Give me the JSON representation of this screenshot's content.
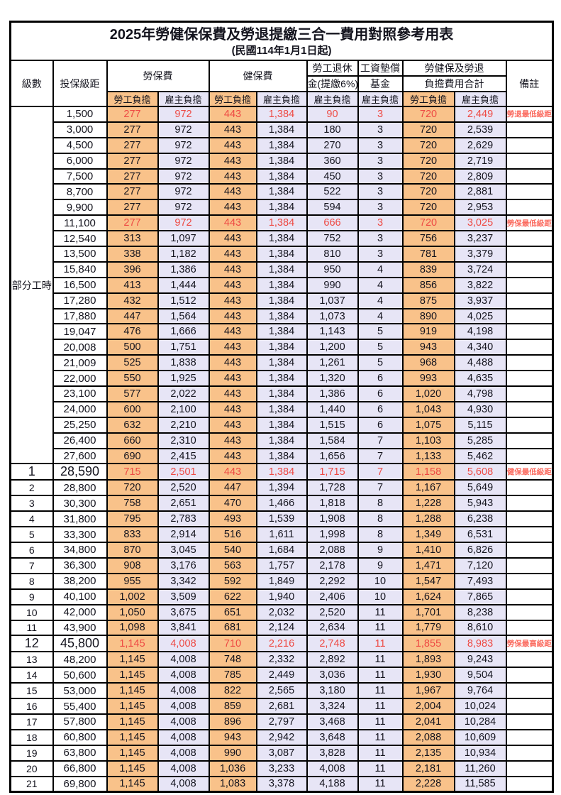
{
  "header": {
    "title": "2025年勞健保保費及勞退提繳三合一費用對照參考用表",
    "subtitle": "(民國114年1月1日起)"
  },
  "columns": {
    "level": "級數",
    "bracket": "投保級距",
    "labor_ins": "勞保費",
    "health_ins": "健保費",
    "pension_line1": "勞工退休",
    "pension_line2": "金(提繳6%)",
    "wage_fund_line1": "工資墊償",
    "wage_fund_line2": "基金",
    "total_line1": "勞健保及勞退",
    "total_line2": "負擔費用合計",
    "note": "備註",
    "employee": "勞工負擔",
    "employer": "雇主負擔"
  },
  "colors": {
    "employee_bg": "#f9c28a",
    "employer_bg": "#e7e5f6",
    "highlight_red": "#ee4a44",
    "note_red": "#fb6a5e"
  },
  "table": {
    "part_time_label": "部分工時",
    "part_time_rowspan": 23,
    "rows": [
      {
        "level": "",
        "bracket": "1,500",
        "li_emp": "277",
        "li_er": "972",
        "hi_emp": "443",
        "hi_er": "1,384",
        "pension": "90",
        "fund": "3",
        "tot_emp": "720",
        "tot_er": "2,449",
        "note": "勞退最低級距",
        "red": true
      },
      {
        "level": "",
        "bracket": "3,000",
        "li_emp": "277",
        "li_er": "972",
        "hi_emp": "443",
        "hi_er": "1,384",
        "pension": "180",
        "fund": "3",
        "tot_emp": "720",
        "tot_er": "2,539",
        "note": ""
      },
      {
        "level": "",
        "bracket": "4,500",
        "li_emp": "277",
        "li_er": "972",
        "hi_emp": "443",
        "hi_er": "1,384",
        "pension": "270",
        "fund": "3",
        "tot_emp": "720",
        "tot_er": "2,629",
        "note": ""
      },
      {
        "level": "",
        "bracket": "6,000",
        "li_emp": "277",
        "li_er": "972",
        "hi_emp": "443",
        "hi_er": "1,384",
        "pension": "360",
        "fund": "3",
        "tot_emp": "720",
        "tot_er": "2,719",
        "note": ""
      },
      {
        "level": "",
        "bracket": "7,500",
        "li_emp": "277",
        "li_er": "972",
        "hi_emp": "443",
        "hi_er": "1,384",
        "pension": "450",
        "fund": "3",
        "tot_emp": "720",
        "tot_er": "2,809",
        "note": ""
      },
      {
        "level": "",
        "bracket": "8,700",
        "li_emp": "277",
        "li_er": "972",
        "hi_emp": "443",
        "hi_er": "1,384",
        "pension": "522",
        "fund": "3",
        "tot_emp": "720",
        "tot_er": "2,881",
        "note": ""
      },
      {
        "level": "",
        "bracket": "9,900",
        "li_emp": "277",
        "li_er": "972",
        "hi_emp": "443",
        "hi_er": "1,384",
        "pension": "594",
        "fund": "3",
        "tot_emp": "720",
        "tot_er": "2,953",
        "note": ""
      },
      {
        "level": "",
        "bracket": "11,100",
        "li_emp": "277",
        "li_er": "972",
        "hi_emp": "443",
        "hi_er": "1,384",
        "pension": "666",
        "fund": "3",
        "tot_emp": "720",
        "tot_er": "3,025",
        "note": "勞保最低級距",
        "red": true
      },
      {
        "level": "",
        "bracket": "12,540",
        "li_emp": "313",
        "li_er": "1,097",
        "hi_emp": "443",
        "hi_er": "1,384",
        "pension": "752",
        "fund": "3",
        "tot_emp": "756",
        "tot_er": "3,237",
        "note": ""
      },
      {
        "level": "",
        "bracket": "13,500",
        "li_emp": "338",
        "li_er": "1,182",
        "hi_emp": "443",
        "hi_er": "1,384",
        "pension": "810",
        "fund": "3",
        "tot_emp": "781",
        "tot_er": "3,379",
        "note": ""
      },
      {
        "level": "",
        "bracket": "15,840",
        "li_emp": "396",
        "li_er": "1,386",
        "hi_emp": "443",
        "hi_er": "1,384",
        "pension": "950",
        "fund": "4",
        "tot_emp": "839",
        "tot_er": "3,724",
        "note": ""
      },
      {
        "level": "",
        "bracket": "16,500",
        "li_emp": "413",
        "li_er": "1,444",
        "hi_emp": "443",
        "hi_er": "1,384",
        "pension": "990",
        "fund": "4",
        "tot_emp": "856",
        "tot_er": "3,822",
        "note": ""
      },
      {
        "level": "",
        "bracket": "17,280",
        "li_emp": "432",
        "li_er": "1,512",
        "hi_emp": "443",
        "hi_er": "1,384",
        "pension": "1,037",
        "fund": "4",
        "tot_emp": "875",
        "tot_er": "3,937",
        "note": ""
      },
      {
        "level": "",
        "bracket": "17,880",
        "li_emp": "447",
        "li_er": "1,564",
        "hi_emp": "443",
        "hi_er": "1,384",
        "pension": "1,073",
        "fund": "4",
        "tot_emp": "890",
        "tot_er": "4,025",
        "note": ""
      },
      {
        "level": "",
        "bracket": "19,047",
        "li_emp": "476",
        "li_er": "1,666",
        "hi_emp": "443",
        "hi_er": "1,384",
        "pension": "1,143",
        "fund": "5",
        "tot_emp": "919",
        "tot_er": "4,198",
        "note": ""
      },
      {
        "level": "",
        "bracket": "20,008",
        "li_emp": "500",
        "li_er": "1,751",
        "hi_emp": "443",
        "hi_er": "1,384",
        "pension": "1,200",
        "fund": "5",
        "tot_emp": "943",
        "tot_er": "4,340",
        "note": ""
      },
      {
        "level": "",
        "bracket": "21,009",
        "li_emp": "525",
        "li_er": "1,838",
        "hi_emp": "443",
        "hi_er": "1,384",
        "pension": "1,261",
        "fund": "5",
        "tot_emp": "968",
        "tot_er": "4,488",
        "note": ""
      },
      {
        "level": "",
        "bracket": "22,000",
        "li_emp": "550",
        "li_er": "1,925",
        "hi_emp": "443",
        "hi_er": "1,384",
        "pension": "1,320",
        "fund": "6",
        "tot_emp": "993",
        "tot_er": "4,635",
        "note": ""
      },
      {
        "level": "",
        "bracket": "23,100",
        "li_emp": "577",
        "li_er": "2,022",
        "hi_emp": "443",
        "hi_er": "1,384",
        "pension": "1,386",
        "fund": "6",
        "tot_emp": "1,020",
        "tot_er": "4,798",
        "note": ""
      },
      {
        "level": "",
        "bracket": "24,000",
        "li_emp": "600",
        "li_er": "2,100",
        "hi_emp": "443",
        "hi_er": "1,384",
        "pension": "1,440",
        "fund": "6",
        "tot_emp": "1,043",
        "tot_er": "4,930",
        "note": ""
      },
      {
        "level": "",
        "bracket": "25,250",
        "li_emp": "632",
        "li_er": "2,210",
        "hi_emp": "443",
        "hi_er": "1,384",
        "pension": "1,515",
        "fund": "6",
        "tot_emp": "1,075",
        "tot_er": "5,115",
        "note": ""
      },
      {
        "level": "",
        "bracket": "26,400",
        "li_emp": "660",
        "li_er": "2,310",
        "hi_emp": "443",
        "hi_er": "1,384",
        "pension": "1,584",
        "fund": "7",
        "tot_emp": "1,103",
        "tot_er": "5,285",
        "note": ""
      },
      {
        "level": "",
        "bracket": "27,600",
        "li_emp": "690",
        "li_er": "2,415",
        "hi_emp": "443",
        "hi_er": "1,384",
        "pension": "1,656",
        "fund": "7",
        "tot_emp": "1,133",
        "tot_er": "5,462",
        "note": ""
      },
      {
        "level": "1",
        "bracket": "28,590",
        "li_emp": "715",
        "li_er": "2,501",
        "hi_emp": "443",
        "hi_er": "1,384",
        "pension": "1,715",
        "fund": "7",
        "tot_emp": "1,158",
        "tot_er": "5,608",
        "note": "健保最低級距",
        "red": true,
        "big": true
      },
      {
        "level": "2",
        "bracket": "28,800",
        "li_emp": "720",
        "li_er": "2,520",
        "hi_emp": "447",
        "hi_er": "1,394",
        "pension": "1,728",
        "fund": "7",
        "tot_emp": "1,167",
        "tot_er": "5,649",
        "note": ""
      },
      {
        "level": "3",
        "bracket": "30,300",
        "li_emp": "758",
        "li_er": "2,651",
        "hi_emp": "470",
        "hi_er": "1,466",
        "pension": "1,818",
        "fund": "8",
        "tot_emp": "1,228",
        "tot_er": "5,943",
        "note": ""
      },
      {
        "level": "4",
        "bracket": "31,800",
        "li_emp": "795",
        "li_er": "2,783",
        "hi_emp": "493",
        "hi_er": "1,539",
        "pension": "1,908",
        "fund": "8",
        "tot_emp": "1,288",
        "tot_er": "6,238",
        "note": ""
      },
      {
        "level": "5",
        "bracket": "33,300",
        "li_emp": "833",
        "li_er": "2,914",
        "hi_emp": "516",
        "hi_er": "1,611",
        "pension": "1,998",
        "fund": "8",
        "tot_emp": "1,349",
        "tot_er": "6,531",
        "note": ""
      },
      {
        "level": "6",
        "bracket": "34,800",
        "li_emp": "870",
        "li_er": "3,045",
        "hi_emp": "540",
        "hi_er": "1,684",
        "pension": "2,088",
        "fund": "9",
        "tot_emp": "1,410",
        "tot_er": "6,826",
        "note": ""
      },
      {
        "level": "7",
        "bracket": "36,300",
        "li_emp": "908",
        "li_er": "3,176",
        "hi_emp": "563",
        "hi_er": "1,757",
        "pension": "2,178",
        "fund": "9",
        "tot_emp": "1,471",
        "tot_er": "7,120",
        "note": ""
      },
      {
        "level": "8",
        "bracket": "38,200",
        "li_emp": "955",
        "li_er": "3,342",
        "hi_emp": "592",
        "hi_er": "1,849",
        "pension": "2,292",
        "fund": "10",
        "tot_emp": "1,547",
        "tot_er": "7,493",
        "note": ""
      },
      {
        "level": "9",
        "bracket": "40,100",
        "li_emp": "1,002",
        "li_er": "3,509",
        "hi_emp": "622",
        "hi_er": "1,940",
        "pension": "2,406",
        "fund": "10",
        "tot_emp": "1,624",
        "tot_er": "7,865",
        "note": ""
      },
      {
        "level": "10",
        "bracket": "42,000",
        "li_emp": "1,050",
        "li_er": "3,675",
        "hi_emp": "651",
        "hi_er": "2,032",
        "pension": "2,520",
        "fund": "11",
        "tot_emp": "1,701",
        "tot_er": "8,238",
        "note": ""
      },
      {
        "level": "11",
        "bracket": "43,900",
        "li_emp": "1,098",
        "li_er": "3,841",
        "hi_emp": "681",
        "hi_er": "2,124",
        "pension": "2,634",
        "fund": "11",
        "tot_emp": "1,779",
        "tot_er": "8,610",
        "note": ""
      },
      {
        "level": "12",
        "bracket": "45,800",
        "li_emp": "1,145",
        "li_er": "4,008",
        "hi_emp": "710",
        "hi_er": "2,216",
        "pension": "2,748",
        "fund": "11",
        "tot_emp": "1,855",
        "tot_er": "8,983",
        "note": "勞保最高級距",
        "red": true,
        "big": true
      },
      {
        "level": "13",
        "bracket": "48,200",
        "li_emp": "1,145",
        "li_er": "4,008",
        "hi_emp": "748",
        "hi_er": "2,332",
        "pension": "2,892",
        "fund": "11",
        "tot_emp": "1,893",
        "tot_er": "9,243",
        "note": ""
      },
      {
        "level": "14",
        "bracket": "50,600",
        "li_emp": "1,145",
        "li_er": "4,008",
        "hi_emp": "785",
        "hi_er": "2,449",
        "pension": "3,036",
        "fund": "11",
        "tot_emp": "1,930",
        "tot_er": "9,504",
        "note": ""
      },
      {
        "level": "15",
        "bracket": "53,000",
        "li_emp": "1,145",
        "li_er": "4,008",
        "hi_emp": "822",
        "hi_er": "2,565",
        "pension": "3,180",
        "fund": "11",
        "tot_emp": "1,967",
        "tot_er": "9,764",
        "note": ""
      },
      {
        "level": "16",
        "bracket": "55,400",
        "li_emp": "1,145",
        "li_er": "4,008",
        "hi_emp": "859",
        "hi_er": "2,681",
        "pension": "3,324",
        "fund": "11",
        "tot_emp": "2,004",
        "tot_er": "10,024",
        "note": ""
      },
      {
        "level": "17",
        "bracket": "57,800",
        "li_emp": "1,145",
        "li_er": "4,008",
        "hi_emp": "896",
        "hi_er": "2,797",
        "pension": "3,468",
        "fund": "11",
        "tot_emp": "2,041",
        "tot_er": "10,284",
        "note": ""
      },
      {
        "level": "18",
        "bracket": "60,800",
        "li_emp": "1,145",
        "li_er": "4,008",
        "hi_emp": "943",
        "hi_er": "2,942",
        "pension": "3,648",
        "fund": "11",
        "tot_emp": "2,088",
        "tot_er": "10,609",
        "note": ""
      },
      {
        "level": "19",
        "bracket": "63,800",
        "li_emp": "1,145",
        "li_er": "4,008",
        "hi_emp": "990",
        "hi_er": "3,087",
        "pension": "3,828",
        "fund": "11",
        "tot_emp": "2,135",
        "tot_er": "10,934",
        "note": ""
      },
      {
        "level": "20",
        "bracket": "66,800",
        "li_emp": "1,145",
        "li_er": "4,008",
        "hi_emp": "1,036",
        "hi_er": "3,233",
        "pension": "4,008",
        "fund": "11",
        "tot_emp": "2,181",
        "tot_er": "11,260",
        "note": ""
      },
      {
        "level": "21",
        "bracket": "69,800",
        "li_emp": "1,145",
        "li_er": "4,008",
        "hi_emp": "1,083",
        "hi_er": "3,378",
        "pension": "4,188",
        "fund": "11",
        "tot_emp": "2,228",
        "tot_er": "11,585",
        "note": ""
      }
    ]
  }
}
